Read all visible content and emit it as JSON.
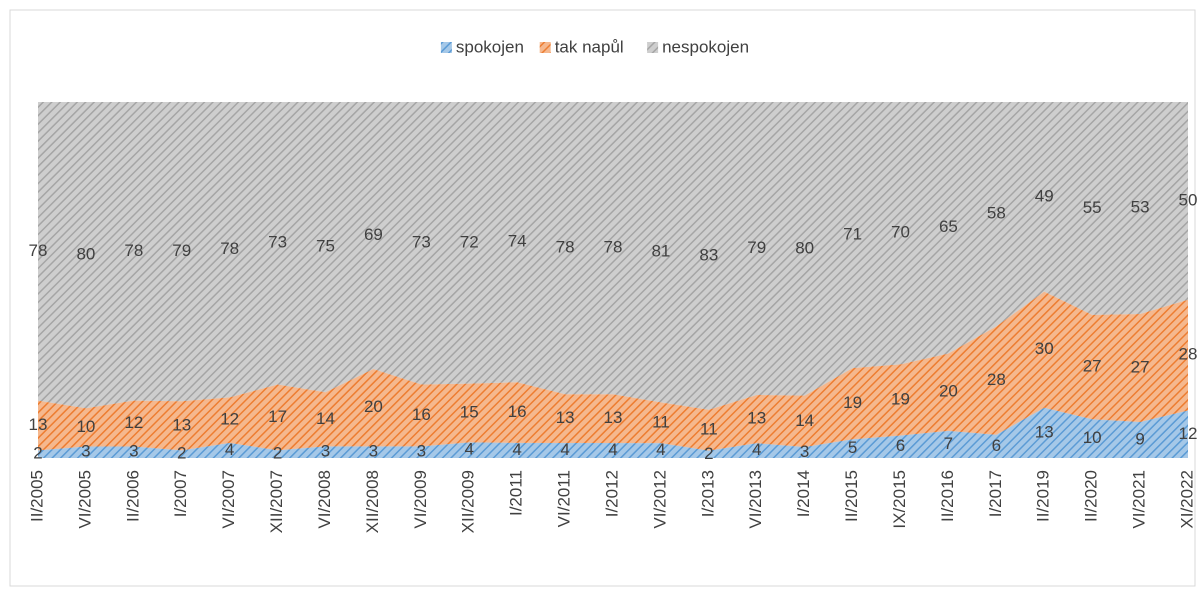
{
  "chart_data": {
    "type": "area",
    "stacked": "percent",
    "categories": [
      "II/2005",
      "VI/2005",
      "II/2006",
      "I/2007",
      "VI/2007",
      "XII/2007",
      "VI/2008",
      "XII/2008",
      "VI/2009",
      "XII/2009",
      "I/2011",
      "VI/2011",
      "I/2012",
      "VI/2012",
      "I/2013",
      "VI/2013",
      "I/2014",
      "II/2015",
      "IX/2015",
      "II/2016",
      "I/2017",
      "II/2019",
      "II/2020",
      "VI/2021",
      "XI/2022"
    ],
    "series": [
      {
        "name": "spokojen",
        "color": "#5b9bd5",
        "values": [
          2,
          3,
          3,
          2,
          4,
          2,
          3,
          3,
          3,
          4,
          4,
          4,
          4,
          4,
          2,
          4,
          3,
          5,
          6,
          7,
          6,
          13,
          10,
          9,
          12
        ]
      },
      {
        "name": "tak napůl",
        "color": "#ed7d31",
        "values": [
          13,
          10,
          12,
          13,
          12,
          17,
          14,
          20,
          16,
          15,
          16,
          13,
          13,
          11,
          11,
          13,
          14,
          19,
          19,
          20,
          28,
          30,
          27,
          27,
          28
        ]
      },
      {
        "name": "nespokojen",
        "color": "#a5a5a5",
        "values": [
          78,
          80,
          78,
          79,
          78,
          73,
          75,
          69,
          73,
          72,
          74,
          78,
          78,
          81,
          83,
          79,
          80,
          71,
          70,
          65,
          58,
          49,
          55,
          53,
          50
        ]
      }
    ],
    "legend": "top"
  }
}
